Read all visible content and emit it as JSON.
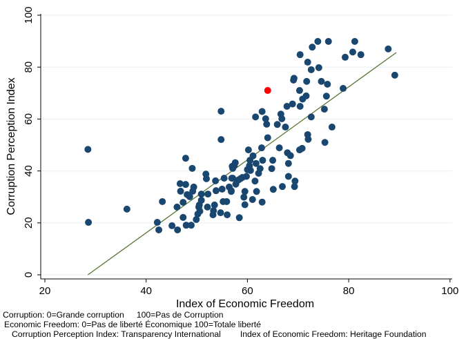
{
  "chart_data": {
    "type": "scatter",
    "xlabel": "Index of Economic Freedom",
    "ylabel": "Corruption Perception Index",
    "xlim": [
      20,
      100
    ],
    "ylim": [
      0,
      100
    ],
    "xticks": [
      "20",
      "40",
      "60",
      "80",
      "100"
    ],
    "yticks": [
      "0",
      "20",
      "40",
      "60",
      "80",
      "100"
    ],
    "grid": "horizontal",
    "colors": {
      "points": "#1a476f",
      "highlight": "#ff0000",
      "fit": "#55752f",
      "grid": "#eaf2f3"
    },
    "fit_line": {
      "x": [
        28.5,
        89.4
      ],
      "y": [
        0,
        85.6
      ]
    },
    "highlight": [
      {
        "x": 64.0,
        "y": 71.0
      }
    ],
    "points": [
      [
        28.5,
        48.3
      ],
      [
        28.6,
        20.2
      ],
      [
        36.2,
        25.3
      ],
      [
        43.2,
        28.2
      ],
      [
        42.2,
        20.2
      ],
      [
        42.5,
        17.3
      ],
      [
        45.1,
        18.9
      ],
      [
        46.2,
        17.3
      ],
      [
        46.1,
        26.1
      ],
      [
        46.7,
        35.1
      ],
      [
        46.8,
        32.2
      ],
      [
        47.3,
        27.9
      ],
      [
        47.3,
        22.1
      ],
      [
        47.8,
        44.9
      ],
      [
        47.8,
        34.8
      ],
      [
        47.9,
        19.1
      ],
      [
        48.9,
        19.1
      ],
      [
        48.1,
        30.9
      ],
      [
        48.6,
        30.1
      ],
      [
        49.1,
        41.0
      ],
      [
        49.2,
        32.2
      ],
      [
        49.4,
        33.8
      ],
      [
        49.9,
        21.3
      ],
      [
        50.2,
        23.4
      ],
      [
        50.4,
        26.1
      ],
      [
        50.5,
        26.9
      ],
      [
        50.6,
        24.5
      ],
      [
        50.9,
        31.1
      ],
      [
        50.9,
        28.7
      ],
      [
        51.8,
        38.8
      ],
      [
        51.9,
        37.0
      ],
      [
        52.2,
        31.1
      ],
      [
        52.1,
        26.1
      ],
      [
        53.2,
        23.1
      ],
      [
        53.3,
        24.7
      ],
      [
        53.5,
        26.9
      ],
      [
        53.7,
        36.2
      ],
      [
        53.8,
        32.4
      ],
      [
        54.7,
        23.9
      ],
      [
        54.8,
        63.0
      ],
      [
        54.8,
        52.1
      ],
      [
        55.0,
        33.0
      ],
      [
        55.2,
        28.2
      ],
      [
        55.4,
        37.2
      ],
      [
        55.9,
        28.2
      ],
      [
        56.0,
        23.1
      ],
      [
        56.4,
        33.8
      ],
      [
        56.8,
        32.4
      ],
      [
        57.1,
        37.2
      ],
      [
        57.1,
        41.0
      ],
      [
        57.4,
        42.0
      ],
      [
        73.9,
        89.9
      ],
      [
        76.0,
        89.9
      ],
      [
        81.2,
        89.9
      ],
      [
        72.8,
        87.7
      ],
      [
        87.8,
        87.0
      ],
      [
        80.8,
        85.8
      ],
      [
        70.4,
        84.8
      ],
      [
        82.4,
        84.8
      ],
      [
        79.3,
        83.8
      ],
      [
        71.9,
        81.9
      ],
      [
        74.1,
        79.8
      ],
      [
        72.6,
        79.0
      ],
      [
        89.1,
        76.9
      ],
      [
        69.2,
        75.7
      ],
      [
        69.1,
        75.0
      ],
      [
        71.7,
        74.5
      ],
      [
        74.6,
        74.5
      ],
      [
        75.8,
        73.4
      ],
      [
        78.9,
        71.8
      ],
      [
        70.3,
        71.0
      ],
      [
        75.6,
        68.8
      ],
      [
        71.6,
        68.9
      ],
      [
        70.9,
        67.7
      ],
      [
        68.9,
        65.8
      ],
      [
        70.4,
        64.9
      ],
      [
        67.8,
        64.9
      ],
      [
        62.9,
        62.9
      ],
      [
        61.6,
        60.8
      ],
      [
        66.6,
        61.9
      ],
      [
        66.8,
        60.1
      ],
      [
        63.6,
        60.1
      ],
      [
        63.8,
        58.0
      ],
      [
        65.9,
        57.9
      ],
      [
        67.5,
        56.9
      ],
      [
        72.6,
        60.8
      ],
      [
        75.2,
        63.8
      ],
      [
        76.7,
        56.9
      ],
      [
        71.9,
        54.0
      ],
      [
        72.0,
        52.2
      ],
      [
        75.3,
        51.0
      ],
      [
        64.0,
        52.8
      ],
      [
        66.3,
        48.9
      ],
      [
        62.8,
        48.9
      ],
      [
        60.2,
        48.1
      ],
      [
        70.3,
        48.1
      ],
      [
        70.8,
        48.7
      ],
      [
        67.9,
        47.0
      ],
      [
        68.5,
        45.9
      ],
      [
        61.1,
        45.8
      ],
      [
        63.0,
        44.1
      ],
      [
        65.0,
        44.1
      ],
      [
        60.5,
        44.1
      ],
      [
        61.7,
        42.9
      ],
      [
        68.1,
        42.9
      ],
      [
        60.4,
        42.0
      ],
      [
        62.5,
        40.9
      ],
      [
        64.8,
        40.9
      ],
      [
        60.6,
        40.2
      ],
      [
        62.2,
        39.1
      ],
      [
        68.1,
        37.9
      ],
      [
        59.8,
        37.9
      ],
      [
        69.4,
        36.1
      ],
      [
        61.5,
        36.1
      ],
      [
        58.6,
        37.0
      ],
      [
        57.7,
        34.9
      ],
      [
        56.9,
        37.2
      ],
      [
        69.3,
        34.0
      ],
      [
        66.9,
        34.0
      ],
      [
        65.1,
        32.9
      ],
      [
        61.8,
        32.1
      ],
      [
        59.5,
        32.1
      ],
      [
        56.8,
        32.1
      ],
      [
        59.3,
        29.9
      ],
      [
        61.0,
        29.0
      ],
      [
        62.9,
        28.0
      ],
      [
        59.5,
        27.0
      ],
      [
        58.4,
        22.0
      ],
      [
        57.6,
        43.2
      ],
      [
        57.0,
        41.8
      ],
      [
        58.2,
        36.5
      ],
      [
        59.0,
        37.5
      ],
      [
        60.0,
        40.5
      ]
    ]
  },
  "notes": {
    "line1a": "Corruption: 0=Grande corruption",
    "line1b": "100=Pas de Corruption",
    "line2": "Economic Freedom: 0=Pas de liberté Économique 100=Totale liberté",
    "line3a": "Corruption Perception Index: Transparency International",
    "line3b": "Index of Economic Freedom: Heritage Foundation"
  }
}
